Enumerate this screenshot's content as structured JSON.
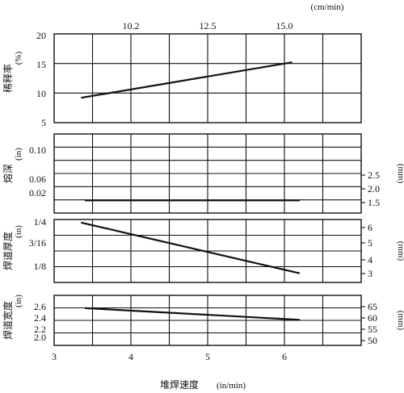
{
  "chart_data": [
    {
      "type": "line",
      "ylabel": "稀释率",
      "yunit": "(%)",
      "ylim": [
        5,
        20
      ],
      "yticks": [
        5,
        10,
        15,
        20
      ],
      "top_axis_unit": "(cm/min)",
      "top_ticks": [
        "10.2",
        "12.5",
        "15.0"
      ],
      "top_tick_positions_in_x": [
        4.0,
        5.0,
        6.0
      ],
      "series": [
        {
          "x": [
            3.35,
            6.1
          ],
          "y": [
            9.2,
            15.2
          ]
        }
      ]
    },
    {
      "type": "line",
      "ylabel": "熔深",
      "yunit": "(in)",
      "ylim": [
        0.02,
        0.12
      ],
      "yticks": [
        "0.02",
        "0.06",
        "0.10"
      ],
      "right_unit": "(mm)",
      "right_ticks": [
        "1.5",
        "2.0",
        "2.5"
      ],
      "series": [
        {
          "x": [
            3.4,
            6.2
          ],
          "y": [
            0.036,
            0.036
          ]
        }
      ]
    },
    {
      "type": "line",
      "ylabel": "焊道厚度",
      "yunit": "(in)",
      "ylim": [
        0.11,
        0.255
      ],
      "yticks": [
        "1/8",
        "3/16",
        "1/4"
      ],
      "right_unit": "(mm)",
      "right_ticks": [
        "3",
        "4",
        "5",
        "6"
      ],
      "series": [
        {
          "x": [
            3.35,
            6.2
          ],
          "y": [
            0.248,
            0.131
          ]
        }
      ]
    },
    {
      "type": "line",
      "ylabel": "焊道宽度",
      "yunit": "(in)",
      "ylim": [
        1.8,
        2.7
      ],
      "yticks": [
        "2.0",
        "2.2",
        "2.4",
        "2.6"
      ],
      "right_unit": "(mm)",
      "right_ticks": [
        "50",
        "55",
        "60",
        "65"
      ],
      "series": [
        {
          "x": [
            3.4,
            6.2
          ],
          "y": [
            2.47,
            2.26
          ]
        }
      ]
    }
  ],
  "shared_x": {
    "xlabel": "堆焊速度",
    "xunit": "(in/min)",
    "xlim": [
      3,
      7
    ],
    "xticks": [
      3,
      4,
      5,
      6
    ]
  }
}
